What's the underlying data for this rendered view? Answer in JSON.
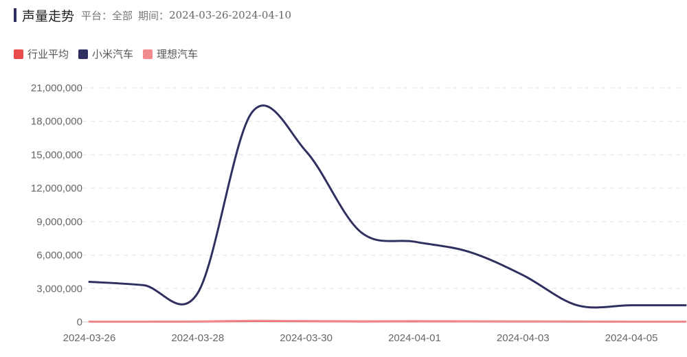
{
  "header": {
    "title": "声量走势",
    "platform_label": "平台：",
    "platform_value": "全部",
    "period_label": "期间：",
    "period_value": "2024-03-26-2024-04-10"
  },
  "chart_data": {
    "type": "line",
    "x": [
      "2024-03-26",
      "2024-03-27",
      "2024-03-28",
      "2024-03-29",
      "2024-03-30",
      "2024-03-31",
      "2024-04-01",
      "2024-04-02",
      "2024-04-03",
      "2024-04-04",
      "2024-04-05",
      "2024-04-06"
    ],
    "xticks": [
      "2024-03-26",
      "2024-03-28",
      "2024-03-30",
      "2024-04-01",
      "2024-04-03",
      "2024-04-05"
    ],
    "ylim": [
      0,
      21000000
    ],
    "yticks": [
      0,
      3000000,
      6000000,
      9000000,
      12000000,
      15000000,
      18000000,
      21000000
    ],
    "ytick_labels": [
      "0",
      "3,000,000",
      "6,000,000",
      "9,000,000",
      "12,000,000",
      "15,000,000",
      "18,000,000",
      "21,000,000"
    ],
    "grid": true,
    "legend_position": "top-left",
    "series": [
      {
        "name": "行业平均",
        "color": "#e84c4c",
        "values": [
          20000,
          25000,
          30000,
          80000,
          60000,
          40000,
          50000,
          45000,
          40000,
          30000,
          25000,
          20000
        ]
      },
      {
        "name": "小米汽车",
        "color": "#2f3060",
        "values": [
          3600000,
          3300000,
          2600000,
          18800000,
          15300000,
          8100000,
          7200000,
          6300000,
          4200000,
          1500000,
          1500000,
          1500000
        ]
      },
      {
        "name": "理想汽车",
        "color": "#f08a8f",
        "values": [
          50000,
          50000,
          60000,
          120000,
          100000,
          80000,
          90000,
          80000,
          70000,
          60000,
          50000,
          50000
        ]
      }
    ]
  }
}
